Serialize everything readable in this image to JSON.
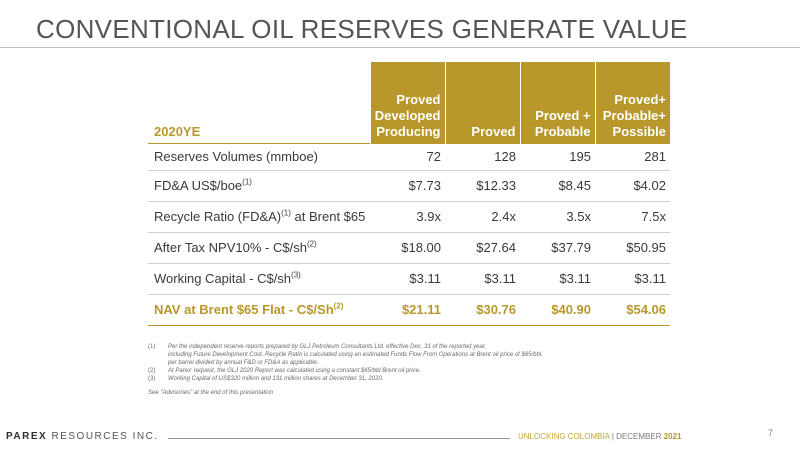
{
  "slide": {
    "title": "CONVENTIONAL OIL RESERVES GENERATE VALUE",
    "page_number": "7"
  },
  "table": {
    "corner_label": "2020YE",
    "columns": [
      [
        "Proved",
        "Developed",
        "Producing"
      ],
      [
        "Proved"
      ],
      [
        "Proved +",
        "Probable"
      ],
      [
        "Proved+",
        "Probable+",
        "Possible"
      ]
    ],
    "rows": [
      {
        "label": "Reserves Volumes (mmboe)",
        "note": "",
        "label_suffix": "",
        "values": [
          "72",
          "128",
          "195",
          "281"
        ]
      },
      {
        "label": "FD&A US$/boe",
        "note": "(1)",
        "label_suffix": "",
        "values": [
          "$7.73",
          "$12.33",
          "$8.45",
          "$4.02"
        ]
      },
      {
        "label": "Recycle Ratio (FD&A)",
        "note": "(1)",
        "label_suffix": " at Brent $65",
        "values": [
          "3.9x",
          "2.4x",
          "3.5x",
          "7.5x"
        ]
      },
      {
        "label": "After Tax NPV10% - C$/sh",
        "note": "(2)",
        "label_suffix": "",
        "values": [
          "$18.00",
          "$27.64",
          "$37.79",
          "$50.95"
        ]
      },
      {
        "label": "Working Capital - C$/sh",
        "note": "(3)",
        "label_suffix": "",
        "values": [
          "$3.11",
          "$3.11",
          "$3.11",
          "$3.11"
        ]
      },
      {
        "label": "NAV at Brent $65 Flat - C$/Sh",
        "note": "(2)",
        "label_suffix": "",
        "values": [
          "$21.11",
          "$30.76",
          "$40.90",
          "$54.06"
        ]
      }
    ]
  },
  "footnotes": [
    {
      "num": "(1)",
      "lines": [
        "Per the independent reserve reports prepared by GLJ Petroleum Consultants Ltd. effective Dec. 31 of the reported year,",
        "including Future Development Cost. Recycle Ratio is calculated using an estimated Funds Flow From Operations at Brent oil price of $65/bbl.",
        "per barrel divided by annual F&D or FD&A as applicable."
      ]
    },
    {
      "num": "(2)",
      "lines": [
        "At Parex' request, the GLJ 2020 Report was calculated using a constant $65/bbl Brent oil price."
      ]
    },
    {
      "num": "(3)",
      "lines": [
        "Working Capital of US$320 million and 131 million shares at December 31, 2020."
      ]
    }
  ],
  "advisories": "See \"Advisories\" at the end of this presentation",
  "footer": {
    "brand_bold": "PAREX",
    "brand_mid": "RESOURCES",
    "brand_end": "INC.",
    "tagline": "UNLOCKING COLOMBIA",
    "separator": "|",
    "date_prefix": "DECEMBER",
    "year": "2021"
  },
  "colors": {
    "accent_gold": "#b8982a",
    "title_gray": "#555555"
  }
}
